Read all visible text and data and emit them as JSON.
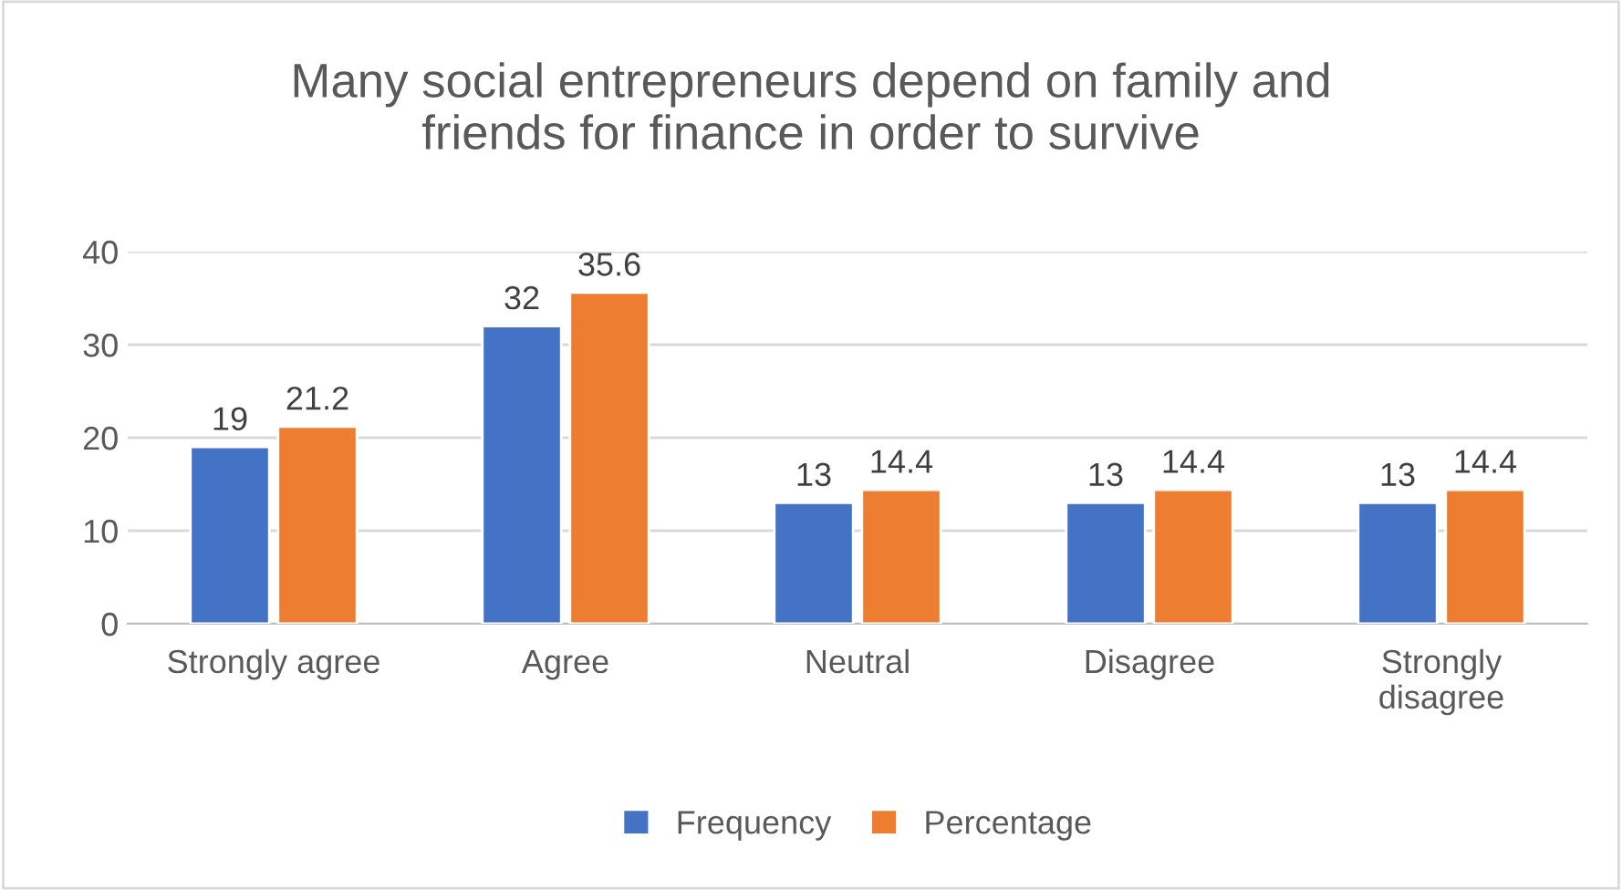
{
  "chart_data": {
    "type": "bar",
    "title": "Many social entrepreneurs depend on family and\nfriends for finance in order to survive",
    "categories": [
      "Strongly agree",
      "Agree",
      "Neutral",
      "Disagree",
      "Strongly\ndisagree"
    ],
    "series": [
      {
        "name": "Frequency",
        "color": "#4472c4",
        "values": [
          19,
          32,
          13,
          13,
          13
        ]
      },
      {
        "name": "Percentage",
        "color": "#ed7d31",
        "values": [
          21.2,
          35.6,
          14.4,
          14.4,
          14.4
        ]
      }
    ],
    "ylim": [
      0,
      40
    ],
    "yticks": [
      0,
      10,
      20,
      30,
      40
    ],
    "grid": "y",
    "legend": "bottom",
    "data_labels": true
  }
}
